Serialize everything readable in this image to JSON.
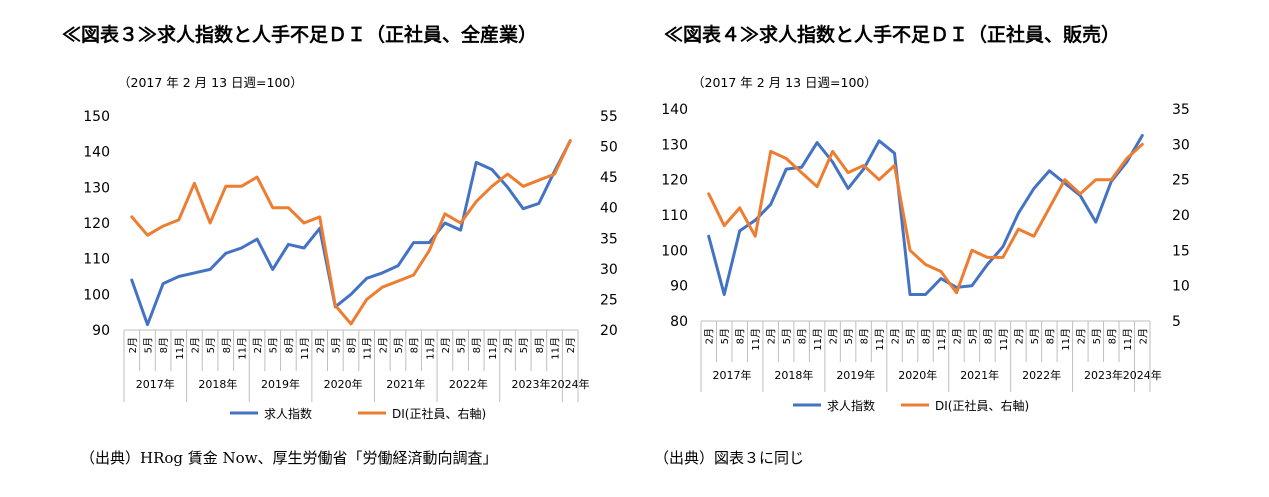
{
  "figures": [
    {
      "title": "≪図表３≫求人指数と人手不足ＤＩ（正社員、全産業）",
      "index_note": "（2017 年 2 月 13 日週=100）",
      "source": "（出典）HRog 賃金 Now、厚生労働省「労働経済動向調査」"
    },
    {
      "title": "≪図表４≫求人指数と人手不足ＤＩ（正社員、販売）",
      "index_note": "（2017 年 2 月 13 日週=100）",
      "source": "（出典）図表３に同じ"
    }
  ],
  "chart_data": [
    {
      "type": "line",
      "x": [
        "2017-02",
        "2017-05",
        "2017-08",
        "2017-11",
        "2018-02",
        "2018-05",
        "2018-08",
        "2018-11",
        "2019-02",
        "2019-05",
        "2019-08",
        "2019-11",
        "2020-02",
        "2020-05",
        "2020-08",
        "2020-11",
        "2021-02",
        "2021-05",
        "2021-08",
        "2021-11",
        "2022-02",
        "2022-05",
        "2022-08",
        "2022-11",
        "2023-02",
        "2023-05",
        "2023-08",
        "2023-11",
        "2024-02"
      ],
      "x_tick_labels": [
        "2月",
        "5月",
        "8月",
        "11月",
        "2月",
        "5月",
        "8月",
        "11月",
        "2月",
        "5月",
        "8月",
        "11月",
        "2月",
        "5月",
        "8月",
        "11月",
        "2月",
        "5月",
        "8月",
        "11月",
        "2月",
        "5月",
        "8月",
        "11月",
        "2月",
        "5月",
        "8月",
        "11月",
        "2月"
      ],
      "year_labels": [
        "2017年",
        "2018年",
        "2019年",
        "2020年",
        "2021年",
        "2022年",
        "2023年",
        "2024年"
      ],
      "y_left": {
        "range": [
          90,
          150
        ],
        "ticks": [
          90,
          100,
          110,
          120,
          130,
          140,
          150
        ]
      },
      "y_right": {
        "range": [
          20,
          55
        ],
        "ticks": [
          20,
          25,
          30,
          35,
          40,
          45,
          50,
          55
        ]
      },
      "series": [
        {
          "name": "求人指数",
          "axis": "left",
          "color": "#4472C4",
          "values": [
            104,
            91.5,
            103,
            105,
            106,
            107,
            111.5,
            113,
            115.5,
            107,
            114,
            113,
            118.5,
            96.5,
            100,
            104.5,
            106,
            108,
            114.5,
            114.5,
            120,
            118,
            137,
            135,
            130,
            124,
            125.5,
            134.5,
            143
          ]
        },
        {
          "name": "DI(正社員、右軸)",
          "axis": "right",
          "color": "#ED7D31",
          "values": [
            38.5,
            35.5,
            37,
            38,
            44,
            37.5,
            43.5,
            43.5,
            45,
            40,
            40,
            37.5,
            38.5,
            24,
            21,
            25,
            27,
            28,
            29,
            33,
            39,
            37.5,
            41,
            43.5,
            45.5,
            43.5,
            44.5,
            45.5,
            51
          ]
        }
      ]
    },
    {
      "type": "line",
      "x": [
        "2017-02",
        "2017-05",
        "2017-08",
        "2017-11",
        "2018-02",
        "2018-05",
        "2018-08",
        "2018-11",
        "2019-02",
        "2019-05",
        "2019-08",
        "2019-11",
        "2020-02",
        "2020-05",
        "2020-08",
        "2020-11",
        "2021-02",
        "2021-05",
        "2021-08",
        "2021-11",
        "2022-02",
        "2022-05",
        "2022-08",
        "2022-11",
        "2023-02",
        "2023-05",
        "2023-08",
        "2023-11",
        "2024-02"
      ],
      "x_tick_labels": [
        "2月",
        "5月",
        "8月",
        "11月",
        "2月",
        "5月",
        "8月",
        "11月",
        "2月",
        "5月",
        "8月",
        "11月",
        "2月",
        "5月",
        "8月",
        "11月",
        "2月",
        "5月",
        "8月",
        "11月",
        "2月",
        "5月",
        "8月",
        "11月",
        "2月",
        "5月",
        "8月",
        "11月",
        "2月"
      ],
      "year_labels": [
        "2017年",
        "2018年",
        "2019年",
        "2020年",
        "2021年",
        "2022年",
        "2023年",
        "2024年"
      ],
      "y_left": {
        "range": [
          80,
          140
        ],
        "ticks": [
          80,
          90,
          100,
          110,
          120,
          130,
          140
        ]
      },
      "y_right": {
        "range": [
          5,
          35
        ],
        "ticks": [
          5,
          10,
          15,
          20,
          25,
          30,
          35
        ]
      },
      "series": [
        {
          "name": "求人指数",
          "axis": "left",
          "color": "#4472C4",
          "values": [
            104,
            87.5,
            105.5,
            108.5,
            113,
            123,
            123.5,
            130.5,
            125,
            117.5,
            123,
            131,
            127.5,
            87.5,
            87.5,
            92,
            89.5,
            90,
            96,
            101,
            110.5,
            117.5,
            122.5,
            119,
            115.5,
            108,
            119.5,
            125,
            132.5
          ]
        },
        {
          "name": "DI(正社員、右軸)",
          "axis": "right",
          "color": "#ED7D31",
          "values": [
            23,
            18.5,
            21,
            17,
            29,
            28,
            26,
            24,
            29,
            26,
            27,
            25,
            27,
            15,
            13,
            12,
            9,
            15,
            14,
            14,
            18,
            17,
            21,
            25,
            23,
            25,
            25,
            28,
            30
          ]
        }
      ]
    }
  ]
}
